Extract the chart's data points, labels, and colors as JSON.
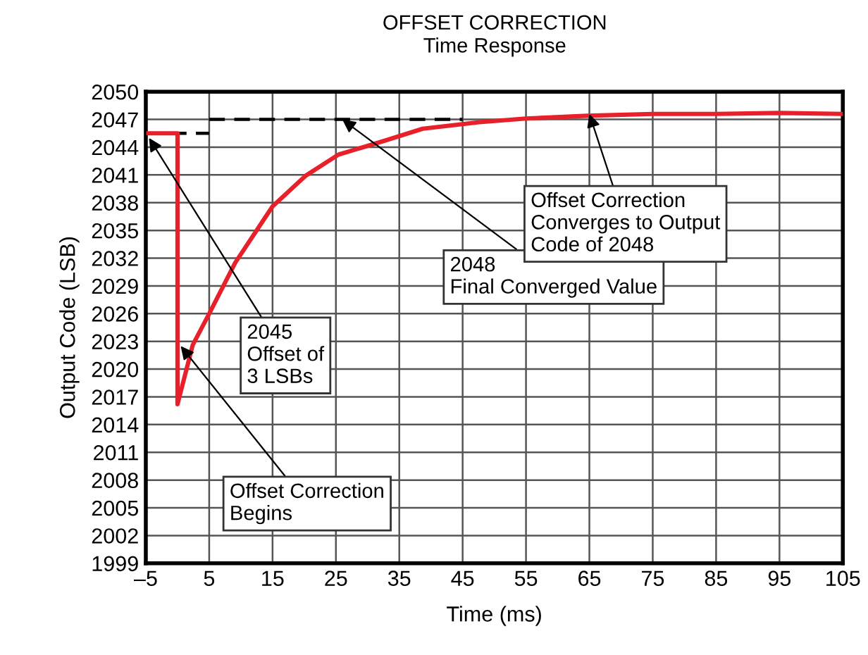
{
  "chart_data": {
    "type": "line",
    "title": "OFFSET CORRECTION",
    "subtitle": "Time Response",
    "xlabel": "Time (ms)",
    "ylabel": "Output Code (LSB)",
    "xlim": [
      -5,
      105
    ],
    "ylim": [
      1999,
      2050
    ],
    "xticks": [
      {
        "value": -5,
        "label": "–5"
      },
      5,
      15,
      25,
      35,
      45,
      55,
      65,
      75,
      85,
      95,
      105
    ],
    "yticks": [
      1999,
      2002,
      2005,
      2008,
      2011,
      2014,
      2017,
      2020,
      2023,
      2026,
      2029,
      2032,
      2035,
      2038,
      2041,
      2044,
      2047,
      2050
    ],
    "grid": true,
    "legend": false,
    "series": [
      {
        "color": "#e8202a",
        "line_style": "solid",
        "x": [
          -4.6,
          0,
          0,
          2.4,
          5,
          9.1,
          15,
          20.2,
          25.4,
          32.7,
          38.7,
          47.6,
          55,
          64.6,
          75,
          85,
          95,
          105
        ],
        "values": [
          2045.5,
          2045.5,
          2016.2,
          2022.6,
          2026,
          2031.5,
          2037.6,
          2040.9,
          2043.2,
          2044.7,
          2046,
          2046.7,
          2047.1,
          2047.4,
          2047.6,
          2047.6,
          2047.7,
          2047.6
        ]
      },
      {
        "color": "#000000",
        "line_style": "dashed",
        "x": [
          -5,
          5
        ],
        "values": [
          2045.5,
          2045.5
        ]
      },
      {
        "color": "#000000",
        "line_style": "dashed",
        "x": [
          5,
          45
        ],
        "values": [
          2047,
          2047
        ]
      }
    ],
    "annotations": [
      {
        "text": "2045\nOffset of\n3 LSBs",
        "x": -4.5,
        "y": 2045
      },
      {
        "text": "Offset Correction\nBegins",
        "x": 0.5,
        "y": 2022.5
      },
      {
        "text": "2048\nFinal Converged Value",
        "x": 26,
        "y": 2047
      },
      {
        "text": "Offset Correction\nConverges to Output\nCode of 2048",
        "x": 65,
        "y": 2047.6
      }
    ]
  }
}
